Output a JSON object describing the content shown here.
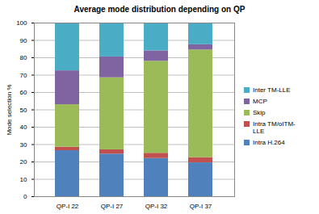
{
  "chart_data": {
    "type": "bar",
    "title": "Average mode distribution depending on QP",
    "ylabel": "Mode selection %",
    "categories": [
      "QP-I 22",
      "QP-I 27",
      "QP-I 32",
      "QP-I 37"
    ],
    "series": [
      {
        "name": "Intra H.264",
        "color": "#4f81bd",
        "values": [
          26.5,
          24.5,
          22,
          19.5
        ]
      },
      {
        "name": "Intra TM/oITM-LLE",
        "color": "#c0504d",
        "values": [
          2,
          2.5,
          3,
          3
        ]
      },
      {
        "name": "Skip",
        "color": "#9bbb59",
        "values": [
          24.5,
          41.5,
          53,
          62
        ]
      },
      {
        "name": "MCP",
        "color": "#8064a2",
        "values": [
          19.5,
          12,
          6,
          3
        ]
      },
      {
        "name": "Inter TM-LLE",
        "color": "#4bacc6",
        "values": [
          27.5,
          19.5,
          16,
          12.5
        ]
      }
    ],
    "ylim": [
      0,
      100
    ],
    "yticks": [
      0,
      10,
      20,
      30,
      40,
      50,
      60,
      70,
      80,
      90,
      100
    ],
    "stacked": true,
    "grid": true,
    "legend": "right"
  }
}
